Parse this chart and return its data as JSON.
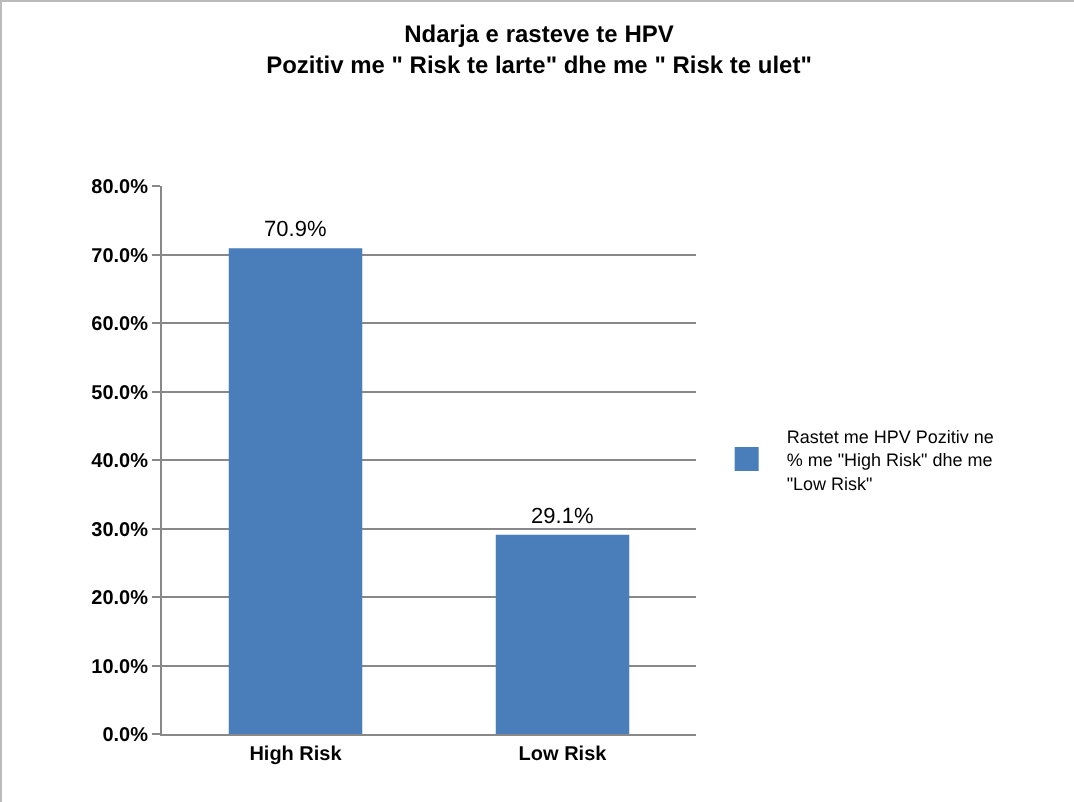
{
  "chart_data": {
    "type": "bar",
    "title": "Ndarja e rasteve te HPV\nPozitiv me \" Risk te larte\" dhe me \" Risk te ulet\"",
    "categories": [
      "High Risk",
      "Low Risk"
    ],
    "series": [
      {
        "name": "Rastet me HPV Pozitiv ne % me \"High Risk\" dhe me \"Low Risk\"",
        "color": "#4a7ebb",
        "values": [
          70.9,
          29.1
        ],
        "value_labels": [
          "70.9%",
          "29.1%"
        ]
      }
    ],
    "ylim": [
      0,
      80
    ],
    "yticks": [
      {
        "value": 0,
        "label": "0.0%"
      },
      {
        "value": 10,
        "label": "10.0%"
      },
      {
        "value": 20,
        "label": "20.0%"
      },
      {
        "value": 30,
        "label": "30.0%"
      },
      {
        "value": 40,
        "label": "40.0%"
      },
      {
        "value": 50,
        "label": "50.0%"
      },
      {
        "value": 60,
        "label": "60.0%"
      },
      {
        "value": 70,
        "label": "70.0%"
      },
      {
        "value": 80,
        "label": "80.0%"
      }
    ],
    "grid": "y",
    "legend": "right"
  }
}
